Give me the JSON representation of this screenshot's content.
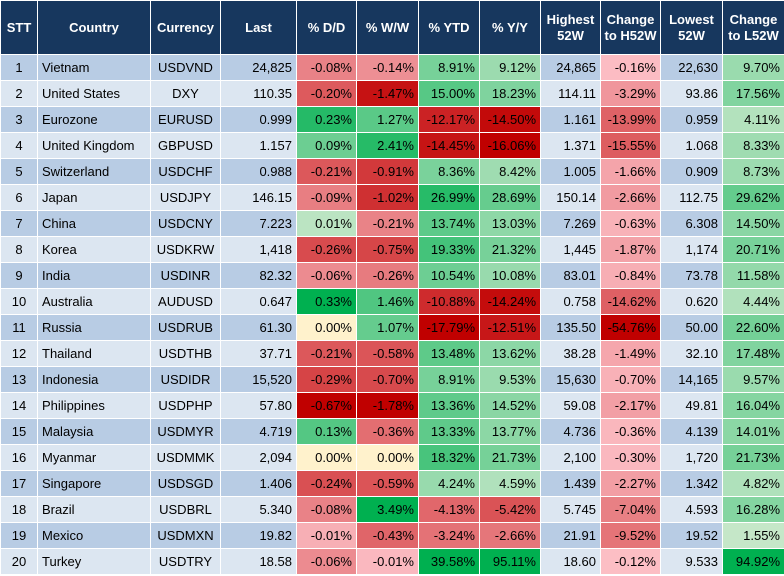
{
  "table": {
    "headers": [
      "STT",
      "Country",
      "Currency",
      "Last",
      "% D/D",
      "% W/W",
      "% YTD",
      "% Y/Y",
      "Highest 52W",
      "Change to H52W",
      "Lowest 52W",
      "Change to L52W"
    ],
    "rows": [
      [
        "1",
        "Vietnam",
        "USDVND",
        "24,825",
        "-0.08%",
        "-0.14%",
        "8.91%",
        "9.12%",
        "24,865",
        "-0.16%",
        "22,630",
        "9.70%"
      ],
      [
        "2",
        "United States",
        "DXY",
        "110.35",
        "-0.20%",
        "-1.47%",
        "15.00%",
        "18.23%",
        "114.11",
        "-3.29%",
        "93.86",
        "17.56%"
      ],
      [
        "3",
        "Eurozone",
        "EURUSD",
        "0.999",
        "0.23%",
        "1.27%",
        "-12.17%",
        "-14.50%",
        "1.161",
        "-13.99%",
        "0.959",
        "4.11%"
      ],
      [
        "4",
        "United Kingdom",
        "GBPUSD",
        "1.157",
        "0.09%",
        "2.41%",
        "-14.45%",
        "-16.06%",
        "1.371",
        "-15.55%",
        "1.068",
        "8.33%"
      ],
      [
        "5",
        "Switzerland",
        "USDCHF",
        "0.988",
        "-0.21%",
        "-0.91%",
        "8.36%",
        "8.42%",
        "1.005",
        "-1.66%",
        "0.909",
        "8.73%"
      ],
      [
        "6",
        "Japan",
        "USDJPY",
        "146.15",
        "-0.09%",
        "-1.02%",
        "26.99%",
        "28.69%",
        "150.14",
        "-2.66%",
        "112.75",
        "29.62%"
      ],
      [
        "7",
        "China",
        "USDCNY",
        "7.223",
        "0.01%",
        "-0.21%",
        "13.74%",
        "13.03%",
        "7.269",
        "-0.63%",
        "6.308",
        "14.50%"
      ],
      [
        "8",
        "Korea",
        "USDKRW",
        "1,418",
        "-0.26%",
        "-0.75%",
        "19.33%",
        "21.32%",
        "1,445",
        "-1.87%",
        "1,174",
        "20.71%"
      ],
      [
        "9",
        "India",
        "USDINR",
        "82.32",
        "-0.06%",
        "-0.26%",
        "10.54%",
        "10.08%",
        "83.01",
        "-0.84%",
        "73.78",
        "11.58%"
      ],
      [
        "10",
        "Australia",
        "AUDUSD",
        "0.647",
        "0.33%",
        "1.46%",
        "-10.88%",
        "-14.24%",
        "0.758",
        "-14.62%",
        "0.620",
        "4.44%"
      ],
      [
        "11",
        "Russia",
        "USDRUB",
        "61.30",
        "0.00%",
        "1.07%",
        "-17.79%",
        "-12.51%",
        "135.50",
        "-54.76%",
        "50.00",
        "22.60%"
      ],
      [
        "12",
        "Thailand",
        "USDTHB",
        "37.71",
        "-0.21%",
        "-0.58%",
        "13.48%",
        "13.62%",
        "38.28",
        "-1.49%",
        "32.10",
        "17.48%"
      ],
      [
        "13",
        "Indonesia",
        "USDIDR",
        "15,520",
        "-0.29%",
        "-0.70%",
        "8.91%",
        "9.53%",
        "15,630",
        "-0.70%",
        "14,165",
        "9.57%"
      ],
      [
        "14",
        "Philippines",
        "USDPHP",
        "57.80",
        "-0.67%",
        "-1.78%",
        "13.36%",
        "14.52%",
        "59.08",
        "-2.17%",
        "49.81",
        "16.04%"
      ],
      [
        "15",
        "Malaysia",
        "USDMYR",
        "4.719",
        "0.13%",
        "-0.36%",
        "13.33%",
        "13.77%",
        "4.736",
        "-0.36%",
        "4.139",
        "14.01%"
      ],
      [
        "16",
        "Myanmar",
        "USDMMK",
        "2,094",
        "0.00%",
        "0.00%",
        "18.32%",
        "21.73%",
        "2,100",
        "-0.30%",
        "1,720",
        "21.73%"
      ],
      [
        "17",
        "Singapore",
        "USDSGD",
        "1.406",
        "-0.24%",
        "-0.59%",
        "4.24%",
        "4.59%",
        "1.439",
        "-2.27%",
        "1.342",
        "4.82%"
      ],
      [
        "18",
        "Brazil",
        "USDBRL",
        "5.340",
        "-0.08%",
        "3.49%",
        "-4.13%",
        "-5.42%",
        "5.745",
        "-7.04%",
        "4.593",
        "16.28%"
      ],
      [
        "19",
        "Mexico",
        "USDMXN",
        "19.82",
        "-0.01%",
        "-0.43%",
        "-3.24%",
        "-2.66%",
        "21.91",
        "-9.52%",
        "19.52",
        "1.55%"
      ],
      [
        "20",
        "Turkey",
        "USDTRY",
        "18.58",
        "-0.06%",
        "-0.01%",
        "39.58%",
        "95.11%",
        "18.60",
        "-0.12%",
        "9.533",
        "94.92%"
      ]
    ]
  }
}
